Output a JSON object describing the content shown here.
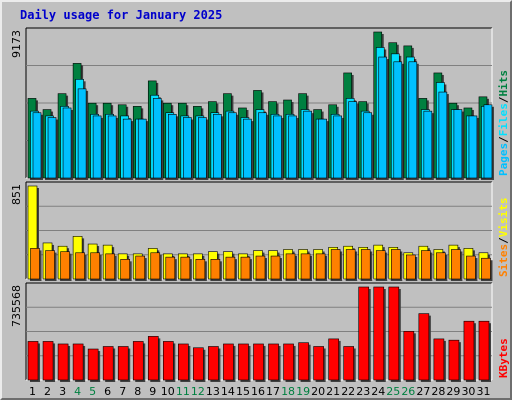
{
  "chart_data": {
    "type": "bar",
    "title": "Daily usage for January 2025",
    "categories": [
      "1",
      "2",
      "3",
      "4",
      "5",
      "6",
      "7",
      "8",
      "9",
      "10",
      "11",
      "12",
      "13",
      "14",
      "15",
      "16",
      "17",
      "18",
      "19",
      "20",
      "21",
      "22",
      "23",
      "24",
      "25",
      "26",
      "27",
      "28",
      "29",
      "30",
      "31"
    ],
    "weekend_days": [
      "4",
      "5",
      "11",
      "12",
      "18",
      "19",
      "25",
      "26"
    ],
    "colors": {
      "background": "#c0c0c0",
      "title": "#0000cc",
      "weekend_label": "#008040",
      "hits": "#008040",
      "files": "#00e0ff",
      "pages": "#00c0ff",
      "visits": "#ff8000",
      "sites": "#ffff00",
      "kbytes": "#ff0000",
      "grid": "#808080"
    },
    "panels": [
      {
        "name": "requests",
        "ymax_label": "9173",
        "ylim": [
          0,
          9173
        ],
        "legend": [
          "Pages",
          "/",
          "Files",
          "/",
          "Hits"
        ],
        "series": [
          {
            "name": "Hits",
            "values": [
              5000,
              4300,
              5300,
              7200,
              4700,
              4700,
              4600,
              4500,
              6100,
              4700,
              4700,
              4500,
              4800,
              5300,
              4400,
              5500,
              4800,
              4900,
              5300,
              4300,
              4600,
              6600,
              4800,
              9173,
              8500,
              8300,
              5000,
              6600,
              4700,
              4400,
              5100
            ]
          },
          {
            "name": "Files",
            "values": [
              4200,
              3900,
              4500,
              6200,
              4000,
              4000,
              3900,
              3700,
              5200,
              4100,
              3900,
              3900,
              4100,
              4200,
              3800,
              4300,
              4000,
              4000,
              4300,
              3700,
              4000,
              5000,
              4200,
              8200,
              7800,
              7600,
              4300,
              6000,
              4300,
              3900,
              4500
            ]
          },
          {
            "name": "Pages",
            "values": [
              4100,
              3800,
              4400,
              5600,
              3900,
              3900,
              3700,
              3700,
              5000,
              4000,
              3800,
              3800,
              4000,
              4100,
              3700,
              4100,
              3900,
              3900,
              4200,
              3700,
              3900,
              4800,
              4100,
              7600,
              7300,
              7300,
              4200,
              5400,
              4300,
              3900,
              4600
            ]
          }
        ]
      },
      {
        "name": "visitors",
        "ymax_label": "851",
        "ylim": [
          0,
          851
        ],
        "legend": [
          "Sites",
          "/",
          "Visits"
        ],
        "series": [
          {
            "name": "Visits",
            "values": [
              851,
              330,
              300,
              390,
              320,
              310,
              230,
              230,
              280,
              230,
              230,
              230,
              250,
              250,
              230,
              260,
              260,
              270,
              270,
              270,
              290,
              300,
              290,
              310,
              290,
              240,
              300,
              270,
              310,
              280,
              240
            ]
          },
          {
            "name": "Sites",
            "values": [
              280,
              260,
              250,
              240,
              240,
              230,
              180,
              210,
              240,
              200,
              200,
              180,
              180,
              200,
              200,
              210,
              210,
              230,
              230,
              230,
              270,
              270,
              270,
              260,
              270,
              220,
              260,
              240,
              270,
              210,
              190
            ]
          }
        ]
      },
      {
        "name": "traffic",
        "ymax_label": "735568",
        "ylim": [
          0,
          735568
        ],
        "legend": [
          "KBytes"
        ],
        "series": [
          {
            "name": "KBytes",
            "values": [
              305000,
              305000,
              285000,
              285000,
              245000,
              265000,
              265000,
              305000,
              345000,
              305000,
              285000,
              255000,
              265000,
              285000,
              285000,
              285000,
              285000,
              285000,
              295000,
              265000,
              325000,
              265000,
              735568,
              735568,
              735568,
              385000,
              525000,
              325000,
              315000,
              465000,
              465000
            ]
          }
        ]
      }
    ]
  }
}
